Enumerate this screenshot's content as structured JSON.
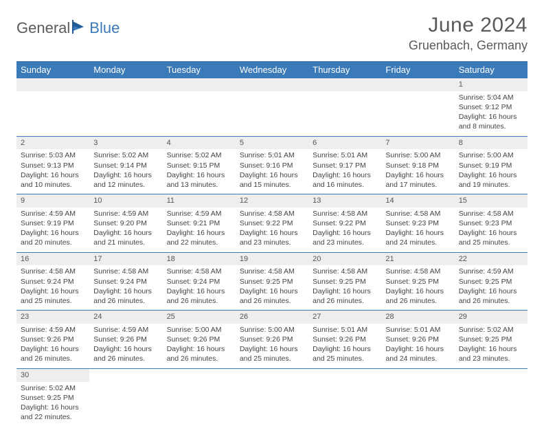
{
  "brand": {
    "part1": "General",
    "part2": "Blue"
  },
  "title": "June 2024",
  "location": "Gruenbach, Germany",
  "colors": {
    "header_bg": "#3b7ab8",
    "header_text": "#ffffff",
    "daynum_bg": "#eeeeee",
    "text": "#444444",
    "border": "#3b7ab8",
    "brand_gray": "#5a5a5a",
    "brand_blue": "#3b7ab8"
  },
  "weekdays": [
    "Sunday",
    "Monday",
    "Tuesday",
    "Wednesday",
    "Thursday",
    "Friday",
    "Saturday"
  ],
  "weeks": [
    [
      null,
      null,
      null,
      null,
      null,
      null,
      {
        "d": "1",
        "sr": "5:04 AM",
        "ss": "9:12 PM",
        "dl": "16 hours and 8 minutes."
      }
    ],
    [
      {
        "d": "2",
        "sr": "5:03 AM",
        "ss": "9:13 PM",
        "dl": "16 hours and 10 minutes."
      },
      {
        "d": "3",
        "sr": "5:02 AM",
        "ss": "9:14 PM",
        "dl": "16 hours and 12 minutes."
      },
      {
        "d": "4",
        "sr": "5:02 AM",
        "ss": "9:15 PM",
        "dl": "16 hours and 13 minutes."
      },
      {
        "d": "5",
        "sr": "5:01 AM",
        "ss": "9:16 PM",
        "dl": "16 hours and 15 minutes."
      },
      {
        "d": "6",
        "sr": "5:01 AM",
        "ss": "9:17 PM",
        "dl": "16 hours and 16 minutes."
      },
      {
        "d": "7",
        "sr": "5:00 AM",
        "ss": "9:18 PM",
        "dl": "16 hours and 17 minutes."
      },
      {
        "d": "8",
        "sr": "5:00 AM",
        "ss": "9:19 PM",
        "dl": "16 hours and 19 minutes."
      }
    ],
    [
      {
        "d": "9",
        "sr": "4:59 AM",
        "ss": "9:19 PM",
        "dl": "16 hours and 20 minutes."
      },
      {
        "d": "10",
        "sr": "4:59 AM",
        "ss": "9:20 PM",
        "dl": "16 hours and 21 minutes."
      },
      {
        "d": "11",
        "sr": "4:59 AM",
        "ss": "9:21 PM",
        "dl": "16 hours and 22 minutes."
      },
      {
        "d": "12",
        "sr": "4:58 AM",
        "ss": "9:22 PM",
        "dl": "16 hours and 23 minutes."
      },
      {
        "d": "13",
        "sr": "4:58 AM",
        "ss": "9:22 PM",
        "dl": "16 hours and 23 minutes."
      },
      {
        "d": "14",
        "sr": "4:58 AM",
        "ss": "9:23 PM",
        "dl": "16 hours and 24 minutes."
      },
      {
        "d": "15",
        "sr": "4:58 AM",
        "ss": "9:23 PM",
        "dl": "16 hours and 25 minutes."
      }
    ],
    [
      {
        "d": "16",
        "sr": "4:58 AM",
        "ss": "9:24 PM",
        "dl": "16 hours and 25 minutes."
      },
      {
        "d": "17",
        "sr": "4:58 AM",
        "ss": "9:24 PM",
        "dl": "16 hours and 26 minutes."
      },
      {
        "d": "18",
        "sr": "4:58 AM",
        "ss": "9:24 PM",
        "dl": "16 hours and 26 minutes."
      },
      {
        "d": "19",
        "sr": "4:58 AM",
        "ss": "9:25 PM",
        "dl": "16 hours and 26 minutes."
      },
      {
        "d": "20",
        "sr": "4:58 AM",
        "ss": "9:25 PM",
        "dl": "16 hours and 26 minutes."
      },
      {
        "d": "21",
        "sr": "4:58 AM",
        "ss": "9:25 PM",
        "dl": "16 hours and 26 minutes."
      },
      {
        "d": "22",
        "sr": "4:59 AM",
        "ss": "9:25 PM",
        "dl": "16 hours and 26 minutes."
      }
    ],
    [
      {
        "d": "23",
        "sr": "4:59 AM",
        "ss": "9:26 PM",
        "dl": "16 hours and 26 minutes."
      },
      {
        "d": "24",
        "sr": "4:59 AM",
        "ss": "9:26 PM",
        "dl": "16 hours and 26 minutes."
      },
      {
        "d": "25",
        "sr": "5:00 AM",
        "ss": "9:26 PM",
        "dl": "16 hours and 26 minutes."
      },
      {
        "d": "26",
        "sr": "5:00 AM",
        "ss": "9:26 PM",
        "dl": "16 hours and 25 minutes."
      },
      {
        "d": "27",
        "sr": "5:01 AM",
        "ss": "9:26 PM",
        "dl": "16 hours and 25 minutes."
      },
      {
        "d": "28",
        "sr": "5:01 AM",
        "ss": "9:26 PM",
        "dl": "16 hours and 24 minutes."
      },
      {
        "d": "29",
        "sr": "5:02 AM",
        "ss": "9:25 PM",
        "dl": "16 hours and 23 minutes."
      }
    ],
    [
      {
        "d": "30",
        "sr": "5:02 AM",
        "ss": "9:25 PM",
        "dl": "16 hours and 22 minutes."
      },
      null,
      null,
      null,
      null,
      null,
      null
    ]
  ],
  "labels": {
    "sunrise": "Sunrise:",
    "sunset": "Sunset:",
    "daylight": "Daylight:"
  }
}
